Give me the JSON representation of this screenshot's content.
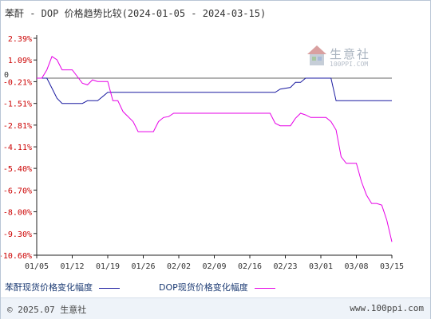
{
  "title": "苯酐 - DOP 价格趋势比较(2024-01-05 - 2024-03-15)",
  "watermark": {
    "name": "生意社",
    "url": "100PPI.COM",
    "icon": "house-logo-icon"
  },
  "footer": {
    "left": "© 2025.07 生意社",
    "right": "www.100ppi.com"
  },
  "chart_data": {
    "type": "line",
    "title": "苯酐 - DOP 价格趋势比较(2024-01-05 - 2024-03-15)",
    "xlabel": "",
    "ylabel": "",
    "x_range": [
      "01/05",
      "03/15"
    ],
    "ylim": [
      -10.6,
      2.39
    ],
    "yticks": [
      "2.39%",
      "1.09%",
      "-0.21%",
      "-1.51%",
      "-2.81%",
      "-4.11%",
      "-5.40%",
      "-6.70%",
      "-8.00%",
      "-9.30%",
      "-10.60%"
    ],
    "ytick_values": [
      2.39,
      1.09,
      -0.21,
      -1.51,
      -2.81,
      -4.11,
      -5.4,
      -6.7,
      -8.0,
      -9.3,
      -10.6
    ],
    "zero_label": "0",
    "xticks": [
      "01/05",
      "01/12",
      "01/19",
      "01/26",
      "02/02",
      "02/09",
      "02/16",
      "02/23",
      "03/01",
      "03/08",
      "03/15"
    ],
    "grid": false,
    "legend_position": "bottom",
    "series": [
      {
        "name": "苯酐现货价格变化幅度",
        "color": "#1a1aa0",
        "points": [
          [
            "01/05",
            0.0
          ],
          [
            "01/07",
            0.0
          ],
          [
            "01/08",
            -0.6
          ],
          [
            "01/09",
            -1.2
          ],
          [
            "01/10",
            -1.51
          ],
          [
            "01/14",
            -1.51
          ],
          [
            "01/15",
            -1.35
          ],
          [
            "01/17",
            -1.35
          ],
          [
            "01/19",
            -0.85
          ],
          [
            "02/21",
            -0.85
          ],
          [
            "02/22",
            -0.65
          ],
          [
            "02/24",
            -0.55
          ],
          [
            "02/25",
            -0.25
          ],
          [
            "02/26",
            -0.25
          ],
          [
            "02/27",
            0.0
          ],
          [
            "03/03",
            0.0
          ],
          [
            "03/04",
            -1.35
          ],
          [
            "03/15",
            -1.35
          ]
        ]
      },
      {
        "name": "DOP现货价格变化幅度",
        "color": "#e600e6",
        "points": [
          [
            "01/05",
            0.0
          ],
          [
            "01/06",
            0.0
          ],
          [
            "01/07",
            0.5
          ],
          [
            "01/08",
            1.3
          ],
          [
            "01/09",
            1.1
          ],
          [
            "01/10",
            0.5
          ],
          [
            "01/12",
            0.5
          ],
          [
            "01/13",
            0.1
          ],
          [
            "01/14",
            -0.3
          ],
          [
            "01/15",
            -0.4
          ],
          [
            "01/16",
            -0.1
          ],
          [
            "01/17",
            -0.2
          ],
          [
            "01/19",
            -0.2
          ],
          [
            "01/20",
            -1.35
          ],
          [
            "01/21",
            -1.35
          ],
          [
            "01/22",
            -2.0
          ],
          [
            "01/24",
            -2.6
          ],
          [
            "01/25",
            -3.2
          ],
          [
            "01/28",
            -3.2
          ],
          [
            "01/29",
            -2.6
          ],
          [
            "01/30",
            -2.35
          ],
          [
            "01/31",
            -2.3
          ],
          [
            "02/01",
            -2.1
          ],
          [
            "02/20",
            -2.1
          ],
          [
            "02/21",
            -2.7
          ],
          [
            "02/22",
            -2.85
          ],
          [
            "02/24",
            -2.85
          ],
          [
            "02/25",
            -2.4
          ],
          [
            "02/26",
            -2.1
          ],
          [
            "02/27",
            -2.2
          ],
          [
            "02/28",
            -2.35
          ],
          [
            "03/02",
            -2.35
          ],
          [
            "03/03",
            -2.6
          ],
          [
            "03/04",
            -3.1
          ],
          [
            "03/05",
            -4.7
          ],
          [
            "03/06",
            -5.1
          ],
          [
            "03/07",
            -5.1
          ],
          [
            "03/08",
            -5.1
          ],
          [
            "03/09",
            -6.2
          ],
          [
            "03/10",
            -7.0
          ],
          [
            "03/11",
            -7.5
          ],
          [
            "03/12",
            -7.5
          ],
          [
            "03/13",
            -7.6
          ],
          [
            "03/14",
            -8.5
          ],
          [
            "03/15",
            -9.8
          ]
        ]
      }
    ]
  }
}
